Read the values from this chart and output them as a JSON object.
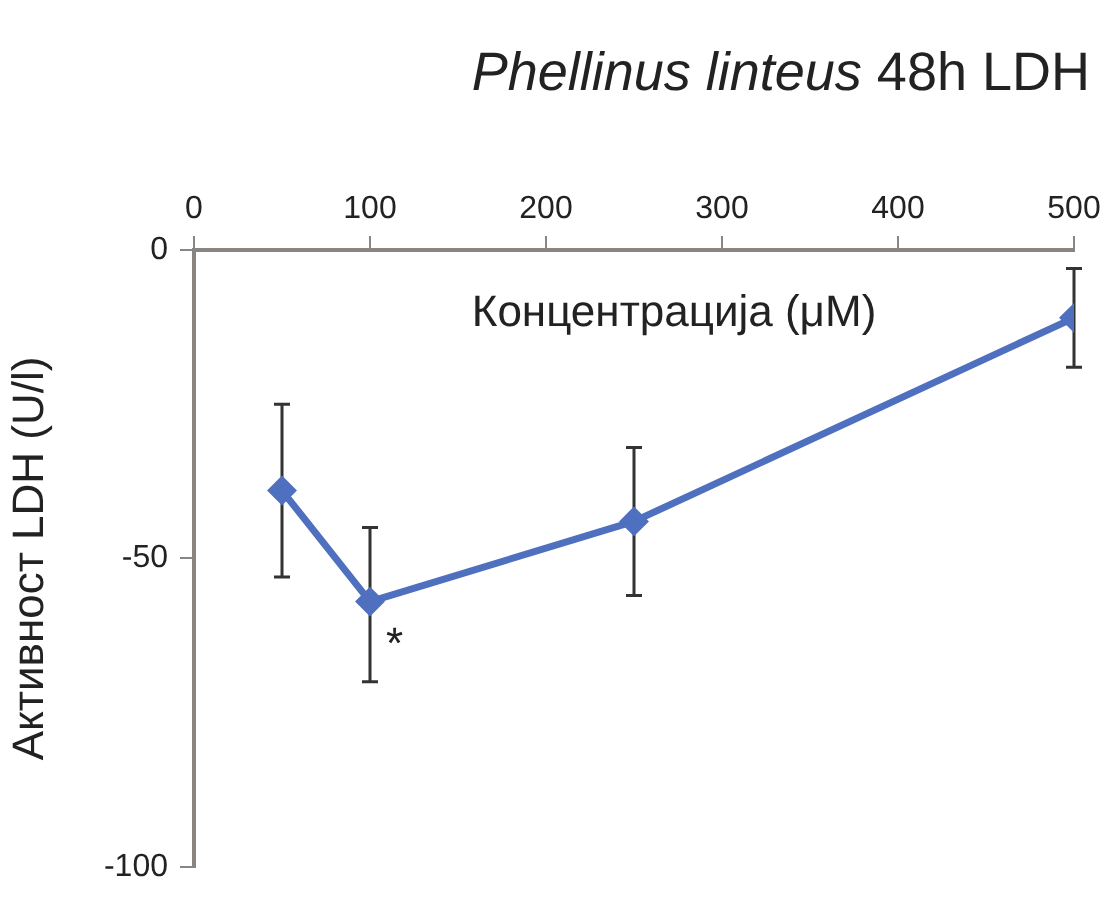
{
  "chart_data": {
    "type": "line",
    "title": "Phellinus linteus 48h LDH",
    "xlabel": "Концентрација (μM)",
    "ylabel": "Активност LDH (U/l)",
    "x": [
      50,
      100,
      250,
      500
    ],
    "series": [
      {
        "color": "#4f6fbf",
        "values": [
          -39,
          -57,
          -44,
          -11
        ],
        "errors": [
          [
            -53,
            -25
          ],
          [
            -70,
            -45
          ],
          [
            -56,
            -32
          ],
          [
            -19,
            -3
          ]
        ]
      }
    ],
    "xlim": [
      0,
      500
    ],
    "xticks": [
      0,
      100,
      200,
      300,
      400,
      500
    ],
    "ylim": [
      -100,
      0
    ],
    "yticks": [
      -100,
      -50,
      0
    ],
    "annotations": [
      {
        "text": "*",
        "x": 100,
        "y": -57
      }
    ],
    "marker": "diamond",
    "line_style": "solid",
    "grid": false,
    "legend": false
  }
}
